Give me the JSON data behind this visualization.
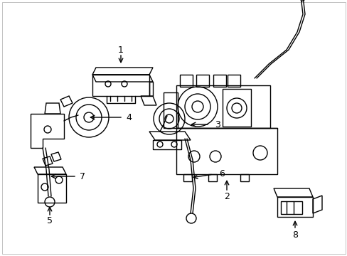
{
  "background_color": "#ffffff",
  "line_color": "#000000",
  "line_width": 1.0,
  "figsize": [
    4.89,
    3.6
  ],
  "dpi": 100
}
